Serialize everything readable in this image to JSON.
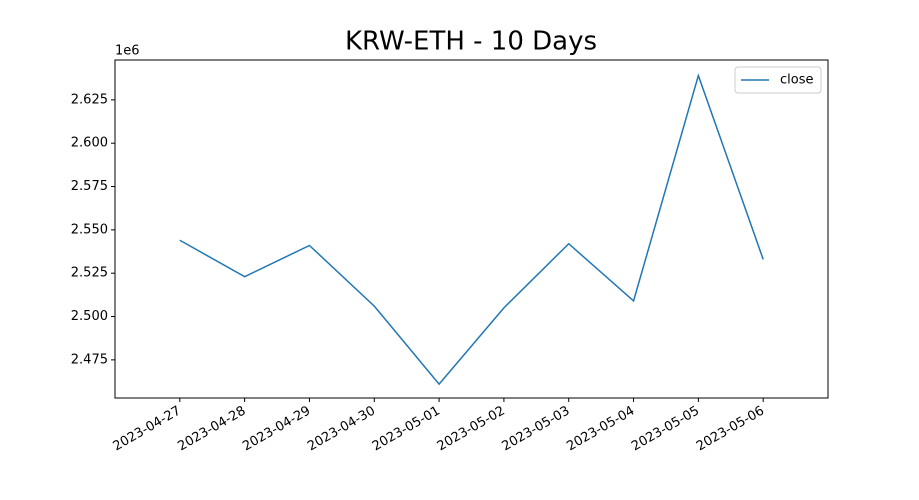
{
  "chart_data": {
    "type": "line",
    "title": "KRW-ETH - 10 Days",
    "y_scale_label": "1e6",
    "x": [
      "2023-04-27",
      "2023-04-28",
      "2023-04-29",
      "2023-04-30",
      "2023-05-01",
      "2023-05-02",
      "2023-05-03",
      "2023-05-04",
      "2023-05-05",
      "2023-05-06"
    ],
    "series": [
      {
        "name": "close",
        "color": "#1f77b4",
        "values": [
          2.544,
          2.523,
          2.541,
          2.506,
          2.461,
          2.505,
          2.542,
          2.509,
          2.639,
          2.533
        ]
      }
    ],
    "xlim": [
      "2023-04-26",
      "2023-05-07"
    ],
    "xticks": [
      "2023-04-27",
      "2023-04-28",
      "2023-04-29",
      "2023-04-30",
      "2023-05-01",
      "2023-05-02",
      "2023-05-03",
      "2023-05-04",
      "2023-05-05",
      "2023-05-06"
    ],
    "ylim": [
      2.453,
      2.648
    ],
    "yticks": [
      2.475,
      {
        "value": 2.5,
        "label": "2.500"
      },
      2.525,
      {
        "value": 2.55,
        "label": "2.550"
      },
      2.575,
      {
        "value": 2.6,
        "label": "2.600"
      },
      2.625
    ],
    "legend": "upper right",
    "grid": false
  }
}
